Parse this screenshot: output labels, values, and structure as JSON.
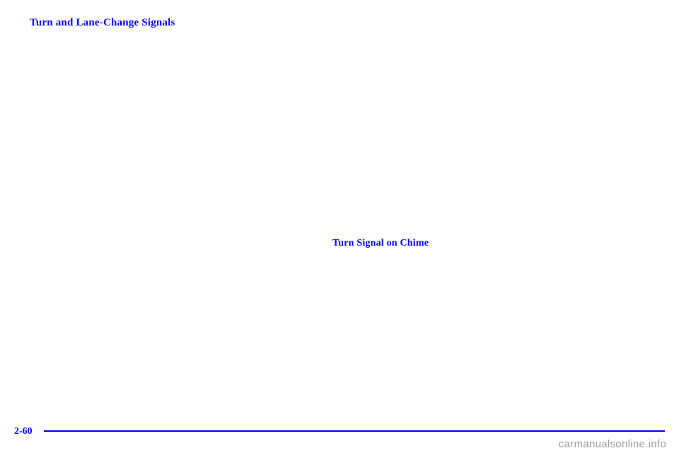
{
  "headings": {
    "main": "Turn and Lane-Change Signals",
    "sub": "Turn Signal on Chime"
  },
  "footer": {
    "page_number": "2-60",
    "rule_color": "#0000ff"
  },
  "watermark": "carmanualsonline.info",
  "colors": {
    "heading": "#0000ff",
    "page_number": "#0000ff",
    "watermark": "#9a9a9a",
    "background": "#ffffff"
  },
  "typography": {
    "heading_fontsize": 15,
    "sub_fontsize": 14,
    "page_number_fontsize": 14,
    "watermark_fontsize": 15
  }
}
